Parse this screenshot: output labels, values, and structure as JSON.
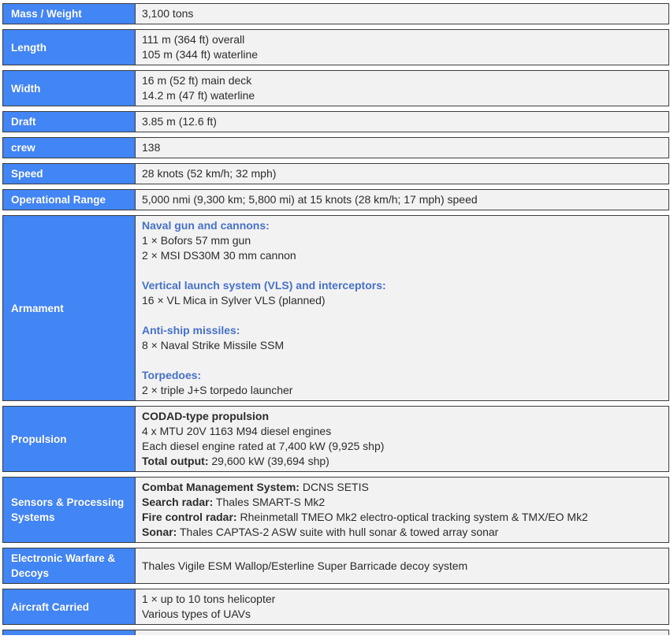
{
  "colors": {
    "header_bg": "#4285f4",
    "header_text": "#ffffff",
    "value_bg": "#f2f2f2",
    "value_text": "#2b2b2b",
    "group_header": "#4671c8",
    "border": "#3d3d3d"
  },
  "table": {
    "rows": [
      {
        "id": "mass-weight",
        "label": "Mass / Weight",
        "lines": [
          [
            {
              "t": "3,100 tons"
            }
          ]
        ]
      },
      {
        "id": "length",
        "label": "Length",
        "lines": [
          [
            {
              "t": "111 m (364 ft) overall"
            }
          ],
          [
            {
              "t": "105 m (344 ft) waterline"
            }
          ]
        ]
      },
      {
        "id": "width",
        "label": "Width",
        "lines": [
          [
            {
              "t": "16 m (52 ft) main deck"
            }
          ],
          [
            {
              "t": "14.2 m (47 ft) waterline"
            }
          ]
        ]
      },
      {
        "id": "draft",
        "label": "Draft",
        "lines": [
          [
            {
              "t": "3.85 m (12.6 ft)"
            }
          ]
        ]
      },
      {
        "id": "crew",
        "label": "crew",
        "lines": [
          [
            {
              "t": "138"
            }
          ]
        ]
      },
      {
        "id": "speed",
        "label": "Speed",
        "lines": [
          [
            {
              "t": "28 knots (52 km/h; 32 mph)"
            }
          ]
        ]
      },
      {
        "id": "operational-range",
        "label": "Operational Range",
        "lines": [
          [
            {
              "t": "5,000 nmi (9,300 km; 5,800 mi) at 15 knots (28 km/h; 17 mph) speed"
            }
          ]
        ]
      },
      {
        "id": "armament",
        "label": "Armament",
        "lines": [
          [
            {
              "t": "Naval gun and cannons:",
              "s": "group"
            }
          ],
          [
            {
              "t": "1 × Bofors 57 mm gun"
            }
          ],
          [
            {
              "t": "2 × MSI DS30M 30 mm cannon"
            }
          ],
          [],
          [
            {
              "t": "Vertical launch system (VLS) and interceptors:",
              "s": "group"
            }
          ],
          [
            {
              "t": "16 × VL Mica in Sylver VLS (planned)"
            }
          ],
          [],
          [
            {
              "t": "Anti-ship missiles:",
              "s": "group"
            }
          ],
          [
            {
              "t": "8 × Naval Strike Missile SSM"
            }
          ],
          [],
          [
            {
              "t": "Torpedoes:",
              "s": "group"
            }
          ],
          [
            {
              "t": "2 × triple J+S torpedo launcher"
            }
          ]
        ]
      },
      {
        "id": "propulsion",
        "label": "Propulsion",
        "lines": [
          [
            {
              "t": "CODAD-type propulsion",
              "s": "bold"
            }
          ],
          [
            {
              "t": "4 x MTU 20V 1163 M94 diesel engines"
            }
          ],
          [
            {
              "t": "Each diesel engine rated at 7,400 kW (9,925 shp)"
            }
          ],
          [
            {
              "t": "Total output:",
              "s": "bold"
            },
            {
              "t": " 29,600 kW (39,694 shp)"
            }
          ]
        ]
      },
      {
        "id": "sensors-processing",
        "label": "Sensors & Processing Systems",
        "lines": [
          [
            {
              "t": "Combat Management System:",
              "s": "bold"
            },
            {
              "t": " DCNS SETIS"
            }
          ],
          [
            {
              "t": "Search radar:",
              "s": "bold"
            },
            {
              "t": " Thales SMART-S Mk2"
            }
          ],
          [
            {
              "t": "Fire control radar:",
              "s": "bold"
            },
            {
              "t": " Rheinmetall TMEO Mk2 electro-optical tracking system & TMX/EO Mk2"
            }
          ],
          [
            {
              "t": "Sonar:",
              "s": "bold"
            },
            {
              "t": " Thales CAPTAS-2 ASW suite with hull sonar & towed array sonar"
            }
          ]
        ]
      },
      {
        "id": "ew-decoys",
        "label": "Electronic Warfare & Decoys",
        "lines": [
          [
            {
              "t": "Thales Vigile ESM Wallop/Esterline Super Barricade decoy system"
            }
          ]
        ]
      },
      {
        "id": "aircraft-carried",
        "label": "Aircraft Carried",
        "lines": [
          [
            {
              "t": "1 × up to 10 tons helicopter"
            }
          ],
          [
            {
              "t": "Various types of UAVs"
            }
          ]
        ]
      },
      {
        "id": "partial-bottom",
        "label": "",
        "partial": true,
        "lines": []
      }
    ]
  }
}
